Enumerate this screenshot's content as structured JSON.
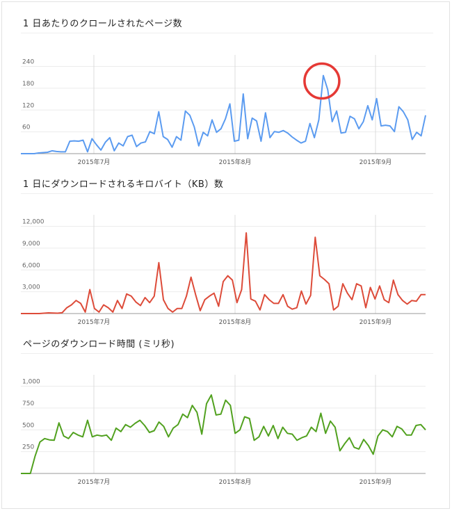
{
  "chart_data": [
    {
      "type": "line",
      "title": "1 日あたりのクロールされたページ数",
      "color": "#5b9bf0",
      "x_labels": [
        "2015年7月",
        "2015年8月",
        "2015年9月"
      ],
      "y_ticks": [
        "60",
        "120",
        "180",
        "240"
      ],
      "ylim": [
        0,
        270
      ],
      "grid": true,
      "annotation": "red circle highlighting the peak value",
      "annotation_color": "#e53935",
      "values": [
        0,
        0,
        0,
        0,
        2,
        3,
        4,
        8,
        6,
        5,
        5,
        35,
        36,
        35,
        38,
        5,
        42,
        25,
        10,
        32,
        45,
        8,
        30,
        22,
        48,
        52,
        20,
        30,
        33,
        62,
        56,
        118,
        48,
        40,
        18,
        48,
        38,
        120,
        108,
        75,
        22,
        60,
        50,
        95,
        60,
        70,
        98,
        140,
        35,
        38,
        168,
        42,
        100,
        92,
        35,
        115,
        45,
        62,
        60,
        65,
        58,
        47,
        38,
        30,
        35,
        85,
        45,
        95,
        220,
        180,
        90,
        120,
        58,
        60,
        105,
        98,
        70,
        90,
        135,
        95,
        155,
        78,
        80,
        78,
        62,
        132,
        118,
        95,
        40,
        60,
        50,
        108
      ]
    },
    {
      "type": "line",
      "title": "1 日にダウンロードされるキロバイト（KB）数",
      "color": "#dd4b39",
      "x_labels": [
        "2015年7月",
        "2015年8月",
        "2015年9月"
      ],
      "y_ticks": [
        "3,000",
        "6,000",
        "9,000",
        "12,000"
      ],
      "ylim": [
        0,
        13200
      ],
      "grid": true,
      "values": [
        0,
        0,
        0,
        0,
        0,
        50,
        100,
        80,
        50,
        120,
        800,
        1200,
        1800,
        1400,
        200,
        3300,
        700,
        200,
        1200,
        800,
        200,
        1800,
        700,
        2700,
        2400,
        1600,
        1100,
        2200,
        1500,
        2400,
        7000,
        1900,
        700,
        200,
        700,
        700,
        2400,
        5000,
        2600,
        400,
        1900,
        2400,
        2800,
        1000,
        4400,
        5200,
        4600,
        1500,
        3300,
        11100,
        2000,
        1700,
        500,
        2600,
        1900,
        1400,
        1400,
        2600,
        1000,
        600,
        800,
        3100,
        1300,
        2500,
        10500,
        5200,
        4700,
        4100,
        500,
        1000,
        4100,
        2800,
        1900,
        4100,
        3800,
        800,
        3600,
        2000,
        3800,
        1900,
        1500,
        4600,
        2600,
        1800,
        1300,
        1800,
        1700,
        2600,
        2600
      ]
    },
    {
      "type": "line",
      "title": "ページのダウンロード時間 (ミリ秒)",
      "color": "#51a11f",
      "x_labels": [
        "2015年7月",
        "2015年8月",
        "2015年9月"
      ],
      "y_ticks": [
        "250",
        "500",
        "750",
        "1,000"
      ],
      "ylim": [
        0,
        1100
      ],
      "grid": true,
      "values": [
        0,
        0,
        0,
        200,
        360,
        400,
        385,
        380,
        580,
        430,
        400,
        470,
        440,
        420,
        610,
        420,
        440,
        430,
        440,
        380,
        520,
        480,
        560,
        530,
        575,
        610,
        550,
        470,
        490,
        590,
        540,
        420,
        520,
        560,
        680,
        640,
        780,
        700,
        450,
        800,
        900,
        670,
        680,
        840,
        780,
        460,
        500,
        650,
        630,
        380,
        420,
        540,
        430,
        550,
        400,
        530,
        460,
        450,
        380,
        410,
        430,
        530,
        480,
        690,
        460,
        600,
        530,
        260,
        340,
        410,
        300,
        280,
        390,
        320,
        220,
        430,
        500,
        480,
        420,
        540,
        510,
        440,
        440,
        550,
        560,
        500
      ]
    }
  ]
}
